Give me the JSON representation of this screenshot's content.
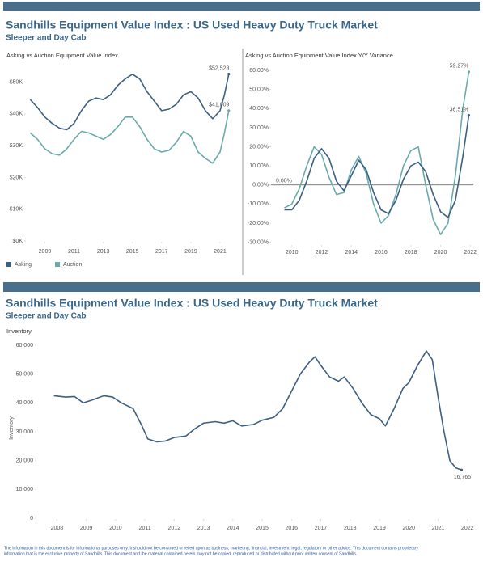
{
  "header": {
    "title": "Sandhills Equipment Value Index : US Used Heavy Duty Truck Market",
    "subtitle": "Sleeper and Day Cab"
  },
  "header2": {
    "title": "Sandhills Equipment Value Index : US Used Heavy Duty Truck Market",
    "subtitle": "Sleeper and Day Cab"
  },
  "disclaimer": [
    "The information in this document is for informational purposes only.  It should not be construed or relied upon as business, marketing, financial, investment, legal, regulatory or other advice. This document contains proprietary",
    "information that is the exclusive property of Sandhills. This document and the material contained herein may not be copied, reproduced or distributed without prior written consent of Sandhills."
  ],
  "chart_data": [
    {
      "type": "line",
      "title": "Asking vs Auction Equipment Value Index",
      "legend": "bottom-left",
      "grid": false,
      "x": [
        2008,
        2008.5,
        2009,
        2009.5,
        2010,
        2010.5,
        2011,
        2011.5,
        2012,
        2012.5,
        2013,
        2013.5,
        2014,
        2014.5,
        2015,
        2015.5,
        2016,
        2016.5,
        2017,
        2017.5,
        2018,
        2018.5,
        2019,
        2019.5,
        2020,
        2020.5,
        2021,
        2021.3,
        2021.6
      ],
      "series": [
        {
          "name": "Asking",
          "color": "#3d5f80",
          "values": [
            44.5,
            42,
            39,
            37,
            35.5,
            35,
            37,
            41,
            44,
            45,
            44.5,
            46,
            49,
            51,
            52.5,
            51,
            47,
            44,
            41,
            41.5,
            43,
            46,
            47,
            45,
            41,
            38.5,
            41,
            46,
            52.528
          ],
          "value_labels": [
            null,
            null,
            null,
            null,
            null,
            null,
            null,
            null,
            null,
            null,
            null,
            null,
            null,
            null,
            null,
            null,
            null,
            null,
            null,
            null,
            null,
            null,
            null,
            null,
            null,
            null,
            null,
            null,
            "$52,528"
          ]
        },
        {
          "name": "Auction",
          "color": "#6aabaa",
          "values": [
            34,
            32,
            29,
            27.5,
            27,
            29,
            32,
            34.5,
            34,
            33,
            32,
            33.5,
            36,
            39,
            39,
            36,
            32,
            29,
            28,
            28.5,
            31,
            34.5,
            33,
            28,
            26,
            24.5,
            28,
            34,
            41.009
          ],
          "value_labels": [
            null,
            null,
            null,
            null,
            null,
            null,
            null,
            null,
            null,
            null,
            null,
            null,
            null,
            null,
            null,
            null,
            null,
            null,
            null,
            null,
            null,
            null,
            null,
            null,
            null,
            null,
            null,
            null,
            "$41,009"
          ]
        }
      ],
      "xlim": [
        2007.7,
        2022
      ],
      "xticks": [
        2009,
        2011,
        2013,
        2015,
        2017,
        2019,
        2021
      ],
      "ylim": [
        0,
        56
      ],
      "yticks": [
        {
          "value": 0,
          "label": "$0K"
        },
        {
          "value": 10,
          "label": "$10K"
        },
        {
          "value": 20,
          "label": "$20K"
        },
        {
          "value": 30,
          "label": "$30K"
        },
        {
          "value": 40,
          "label": "$40K"
        },
        {
          "value": 50,
          "label": "$50K"
        }
      ]
    },
    {
      "type": "line",
      "title": "Asking vs Auction Equipment Value Index Y/Y Variance",
      "grid": false,
      "reference_line": {
        "value": 0,
        "label": "0.00%"
      },
      "x": [
        2009.5,
        2010,
        2010.5,
        2011,
        2011.5,
        2012,
        2012.5,
        2013,
        2013.5,
        2014,
        2014.5,
        2015,
        2015.5,
        2016,
        2016.5,
        2017,
        2017.5,
        2018,
        2018.5,
        2019,
        2019.5,
        2020,
        2020.5,
        2021,
        2021.5,
        2021.9
      ],
      "series": [
        {
          "color": "#6aabaa",
          "values": [
            -12,
            -10,
            -2,
            10,
            20,
            16,
            4,
            -5,
            -4,
            8,
            15,
            6,
            -10,
            -20,
            -16,
            -5,
            10,
            18,
            20,
            0,
            -18,
            -26,
            -20,
            5,
            40,
            59.27
          ],
          "value_labels": [
            null,
            null,
            null,
            null,
            null,
            null,
            null,
            null,
            null,
            null,
            null,
            null,
            null,
            null,
            null,
            null,
            null,
            null,
            null,
            null,
            null,
            null,
            null,
            null,
            null,
            "59.27%"
          ]
        },
        {
          "color": "#3d5f80",
          "values": [
            -13,
            -13,
            -8,
            2,
            14,
            19,
            14,
            2,
            -3,
            5,
            13,
            8,
            -4,
            -13,
            -15,
            -8,
            3,
            10,
            12,
            7,
            -5,
            -14,
            -17,
            -8,
            15,
            36.51
          ],
          "value_labels": [
            null,
            null,
            null,
            null,
            null,
            null,
            null,
            null,
            null,
            null,
            null,
            null,
            null,
            null,
            null,
            null,
            null,
            null,
            null,
            null,
            null,
            null,
            null,
            null,
            null,
            "36.51%"
          ]
        }
      ],
      "xlim": [
        2008.6,
        2022.2
      ],
      "xticks": [
        2010,
        2012,
        2014,
        2016,
        2018,
        2020,
        2022
      ],
      "ylim": [
        -31,
        63
      ],
      "yticks": [
        {
          "value": -30,
          "label": "-30.00%"
        },
        {
          "value": -20,
          "label": "-20.00%"
        },
        {
          "value": -10,
          "label": "-10.00%"
        },
        {
          "value": 0,
          "label": "0.00%"
        },
        {
          "value": 10,
          "label": "10.00%"
        },
        {
          "value": 20,
          "label": "20.00%"
        },
        {
          "value": 30,
          "label": "30.00%"
        },
        {
          "value": 40,
          "label": "40.00%"
        },
        {
          "value": 50,
          "label": "50.00%"
        },
        {
          "value": 60,
          "label": "60.00%"
        }
      ]
    },
    {
      "type": "line",
      "title": "Inventory",
      "ylabel": "Inventory",
      "grid": false,
      "x": [
        2007.9,
        2008.3,
        2008.6,
        2008.9,
        2009.2,
        2009.6,
        2009.9,
        2010.2,
        2010.6,
        2010.9,
        2011.1,
        2011.4,
        2011.7,
        2012.0,
        2012.4,
        2012.7,
        2013.0,
        2013.4,
        2013.7,
        2014.0,
        2014.3,
        2014.7,
        2015.0,
        2015.4,
        2015.7,
        2016.0,
        2016.3,
        2016.6,
        2016.8,
        2017.0,
        2017.3,
        2017.6,
        2017.8,
        2018.1,
        2018.4,
        2018.7,
        2019.0,
        2019.2,
        2019.5,
        2019.8,
        2020.0,
        2020.3,
        2020.6,
        2020.8,
        2021.0,
        2021.2,
        2021.4,
        2021.6,
        2021.8
      ],
      "series": [
        {
          "color": "#3d5f80",
          "values": [
            42500,
            42000,
            42200,
            40000,
            41000,
            42500,
            42000,
            40000,
            38000,
            32000,
            27500,
            26500,
            26800,
            28000,
            28500,
            31000,
            33000,
            33500,
            33000,
            33800,
            32000,
            32500,
            34000,
            35000,
            38000,
            44000,
            50000,
            54000,
            56000,
            53000,
            49000,
            47500,
            49000,
            45000,
            40000,
            36000,
            34500,
            32000,
            38000,
            45000,
            47000,
            53000,
            58000,
            55000,
            42000,
            30000,
            20000,
            17500,
            16765
          ],
          "value_labels": [
            null,
            null,
            null,
            null,
            null,
            null,
            null,
            null,
            null,
            null,
            null,
            null,
            null,
            null,
            null,
            null,
            null,
            null,
            null,
            null,
            null,
            null,
            null,
            null,
            null,
            null,
            null,
            null,
            null,
            null,
            null,
            null,
            null,
            null,
            null,
            null,
            null,
            null,
            null,
            null,
            null,
            null,
            null,
            null,
            null,
            null,
            null,
            null,
            "16,765"
          ]
        }
      ],
      "xlim": [
        2007.3,
        2022.2
      ],
      "xticks": [
        2008,
        2009,
        2010,
        2011,
        2012,
        2013,
        2014,
        2015,
        2016,
        2017,
        2018,
        2019,
        2020,
        2021,
        2022
      ],
      "ylim": [
        0,
        62500
      ],
      "yticks": [
        0,
        {
          "value": 10000,
          "label": "10,000"
        },
        {
          "value": 20000,
          "label": "20,000"
        },
        {
          "value": 30000,
          "label": "30,000"
        },
        {
          "value": 40000,
          "label": "40,000"
        },
        {
          "value": 50000,
          "label": "50,000"
        },
        {
          "value": 60000,
          "label": "60,000"
        }
      ]
    }
  ]
}
